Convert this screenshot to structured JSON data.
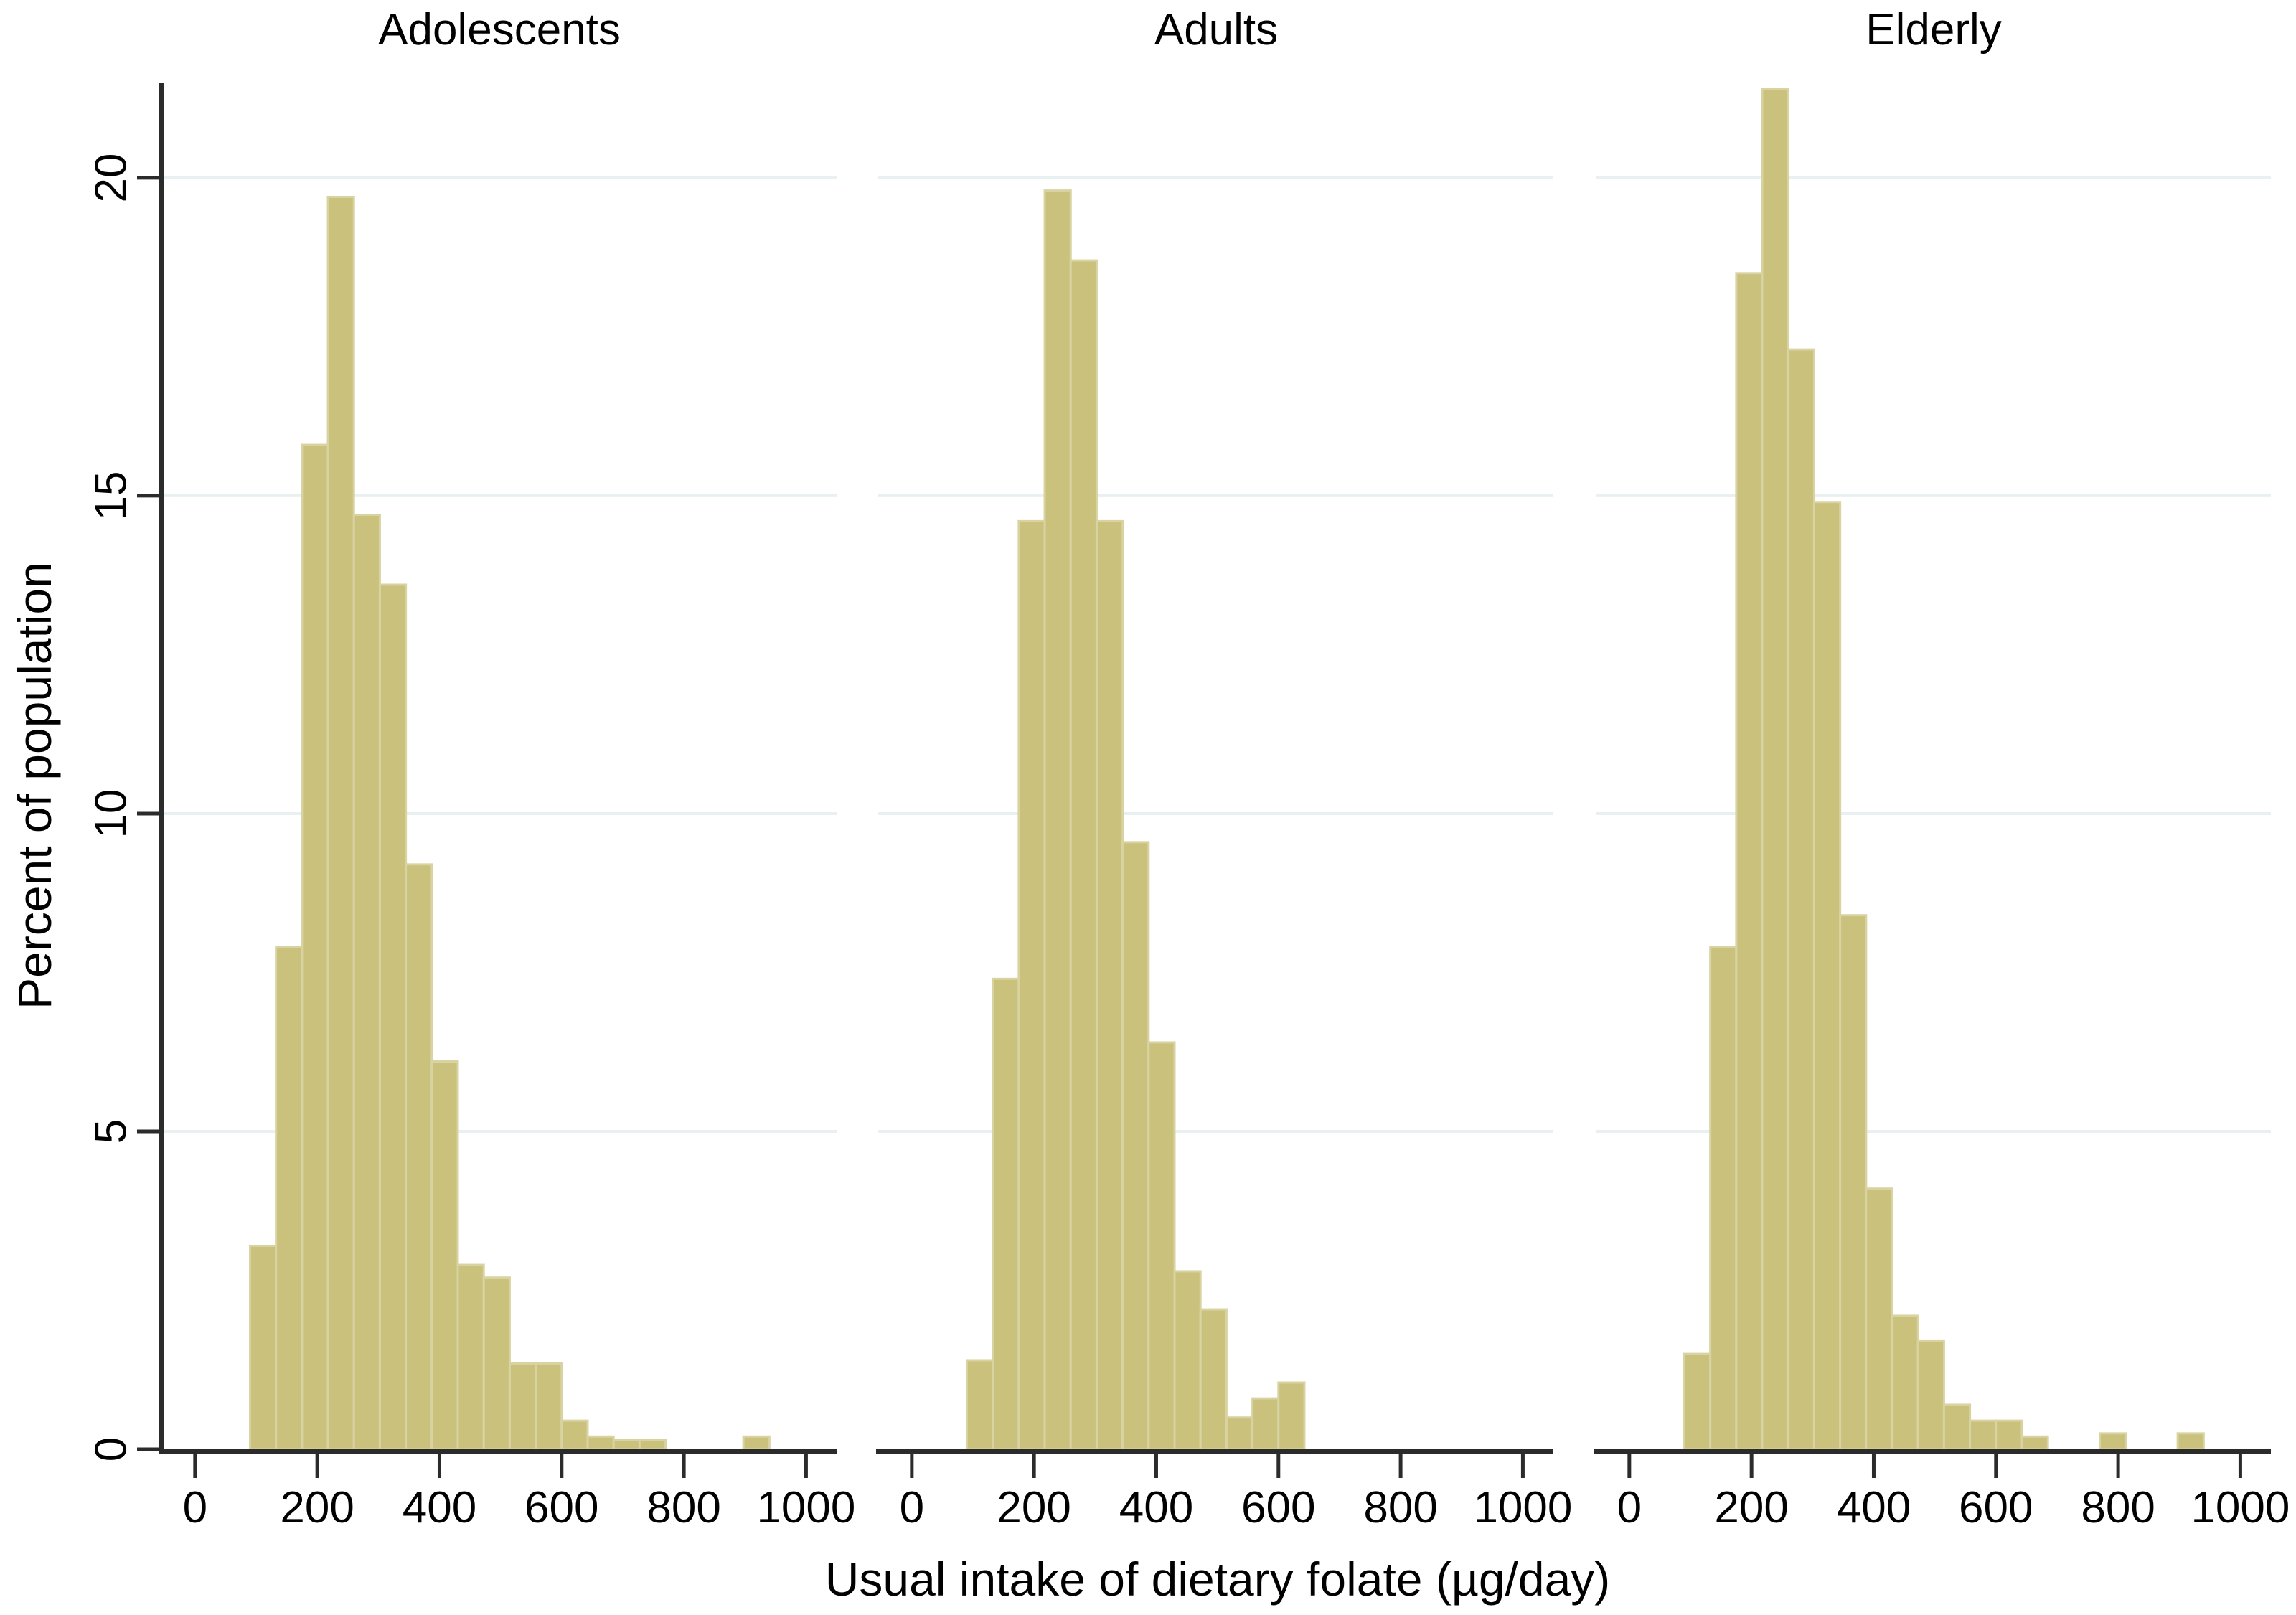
{
  "figure": {
    "y_axis_title": "Percent of population",
    "x_axis_title": "Usual intake of dietary folate (µg/day)"
  },
  "chart_data": {
    "type": "bar",
    "subtype": "faceted-histogram",
    "title": "",
    "xlabel": "Usual intake of dietary folate (µg/day)",
    "ylabel": "Percent of population",
    "x_ticks": [
      0,
      200,
      400,
      600,
      800,
      1000
    ],
    "y_ticks": [
      0,
      5,
      10,
      15,
      20
    ],
    "x_range": [
      -55,
      1050
    ],
    "y_range": [
      0,
      21.5
    ],
    "bin_start": 90,
    "bin_width": 42.5,
    "grid": "horizontal-only",
    "legend": "none",
    "colors": {
      "bar_fill": "#c9c17c",
      "bar_edge": "#d9d3a2",
      "gridline": "#e8f0f2",
      "axis": "#2b2b2b",
      "text": "#000000",
      "background": "#ffffff"
    },
    "panels": [
      {
        "title": "Adolescents",
        "values": [
          3.2,
          7.9,
          15.8,
          19.7,
          14.7,
          13.6,
          9.2,
          6.1,
          2.9,
          2.7,
          1.35,
          1.35,
          0.45,
          0.2,
          0.15,
          0.15,
          0,
          0,
          0,
          0.2
        ]
      },
      {
        "title": "Adults",
        "values": [
          1.4,
          7.4,
          14.6,
          19.8,
          18.7,
          14.6,
          9.55,
          6.4,
          2.8,
          2.2,
          0.5,
          0.8,
          1.05
        ]
      },
      {
        "title": "Elderly",
        "values": [
          1.5,
          7.9,
          18.5,
          21.4,
          17.3,
          14.9,
          8.4,
          4.1,
          2.1,
          1.7,
          0.7,
          0.45,
          0.45,
          0.2,
          0,
          0,
          0.25,
          0,
          0,
          0.25
        ]
      }
    ]
  }
}
